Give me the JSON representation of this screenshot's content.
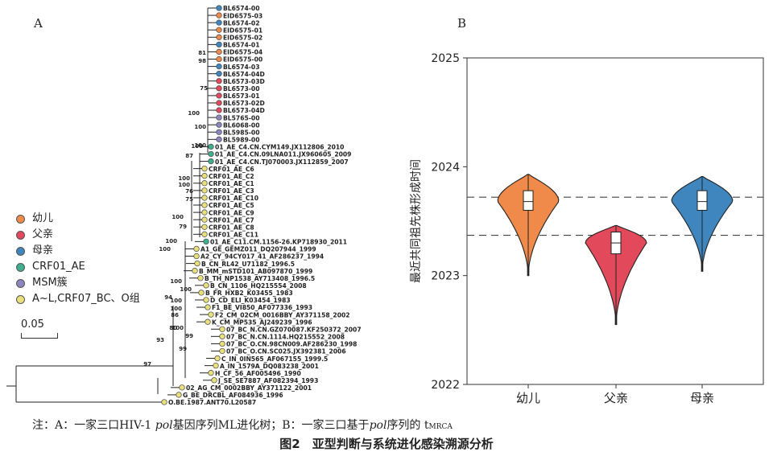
{
  "panel_a": {
    "letter": "A"
  },
  "panel_b": {
    "letter": "B"
  },
  "tree": {
    "leaves": [
      {
        "label": "BL6574-00",
        "group": "mother"
      },
      {
        "label": "EID6575-03",
        "group": "infant"
      },
      {
        "label": "BL6574-02",
        "group": "mother"
      },
      {
        "label": "EID6575-01",
        "group": "infant"
      },
      {
        "label": "EID6575-02",
        "group": "infant"
      },
      {
        "label": "BL6574-01",
        "group": "mother"
      },
      {
        "label": "EID6575-04",
        "group": "infant"
      },
      {
        "label": "EID6575-00",
        "group": "infant"
      },
      {
        "label": "BL6574-03",
        "group": "mother"
      },
      {
        "label": "BL6574-04D",
        "group": "mother"
      },
      {
        "label": "BL6573-03D",
        "group": "father"
      },
      {
        "label": "BL6573-00",
        "group": "father"
      },
      {
        "label": "BL6573-01",
        "group": "father"
      },
      {
        "label": "BL6573-02D",
        "group": "father"
      },
      {
        "label": "BL6573-04D",
        "group": "father"
      },
      {
        "label": "BL5765-00",
        "group": "msm"
      },
      {
        "label": "BL6068-00",
        "group": "msm"
      },
      {
        "label": "BL5985-00",
        "group": "msm"
      },
      {
        "label": "BL5989-00",
        "group": "msm"
      },
      {
        "label": "01_AE_C4.CN.CYM149.JX112806_2010",
        "group": "crf01"
      },
      {
        "label": "01_AE_C4.CN.09LNA011.JX960605_2009",
        "group": "crf01"
      },
      {
        "label": "01_AE_C4.CN.TJ070003.JX112859_2007",
        "group": "crf01"
      },
      {
        "label": "CRF01_AE_C6",
        "group": "none"
      },
      {
        "label": "CRF01_AE_C2",
        "group": "none"
      },
      {
        "label": "CRF01_AE_C1",
        "group": "none"
      },
      {
        "label": "CRF01_AE_C3",
        "group": "none"
      },
      {
        "label": "CRF01_AE_C10",
        "group": "none"
      },
      {
        "label": "CRF01_AE_C5",
        "group": "none"
      },
      {
        "label": "CRF01_AE_C9",
        "group": "none"
      },
      {
        "label": "CRF01_AE_C7",
        "group": "none"
      },
      {
        "label": "CRF01_AE_C8",
        "group": "none"
      },
      {
        "label": "CRF01_AE_C11",
        "group": "none"
      },
      {
        "label": "01_AE_C11.CM.1156-26.KP718930_2011",
        "group": "crf01"
      },
      {
        "label": "A1_GE_GEMZ011_DQ207944_1999",
        "group": "ref"
      },
      {
        "label": "A2_CY_94CY017_41_AF286237_1994",
        "group": "ref"
      },
      {
        "label": "B_CN_RL42_U71182_1996.5",
        "group": "ref"
      },
      {
        "label": "B_MM_mSTD101_AB097870_1999",
        "group": "ref"
      },
      {
        "label": "B_TH_NP1538_AY713408_1996.5",
        "group": "ref"
      },
      {
        "label": "B_CN_1106_HQ215554_2008",
        "group": "ref"
      },
      {
        "label": "B_FR_HXB2_K03455_1983",
        "group": "ref"
      },
      {
        "label": "D_CD_ELI_K03454_1983",
        "group": "ref"
      },
      {
        "label": "F1_BE_VI850_AF077336_1993",
        "group": "ref"
      },
      {
        "label": "F2_CM_02CM_0016BBY_AY371158_2002",
        "group": "ref"
      },
      {
        "label": "K_CM_MP535_AJ249239_1996",
        "group": "ref"
      },
      {
        "label": "07_BC_N.CN.GZ070087.KF250372_2007",
        "group": "ref"
      },
      {
        "label": "07_BC_N.CN.1114.HQ215552_2008",
        "group": "ref"
      },
      {
        "label": "07_BC_O.CN.98CN009.AF286230_1998",
        "group": "ref"
      },
      {
        "label": "07_BC_O.CN.SC025.JX392381_2006",
        "group": "ref"
      },
      {
        "label": "C_IN_0IN565_AF067155_1999.5",
        "group": "ref"
      },
      {
        "label": "A_IN_1579A_DQ083238_2001",
        "group": "ref"
      },
      {
        "label": "H_CF_56_AF005496_1990",
        "group": "ref"
      },
      {
        "label": "J_SE_SE7887_AF082394_1993",
        "group": "ref"
      },
      {
        "label": "02_AG_CM_0002BBY_AY371122_2001",
        "group": "ref"
      },
      {
        "label": "G_BE_DRCBL_AF084936_1996",
        "group": "ref"
      },
      {
        "label": "O.BE.1987.ANT70.L20587",
        "group": "ref"
      }
    ],
    "bootstrap": [
      "81",
      "98",
      "75",
      "100",
      "100",
      "100",
      "100",
      "87",
      "100",
      "100",
      "76",
      "75",
      "100",
      "79",
      "100",
      "100",
      "100",
      "100",
      "100",
      "100",
      "94",
      "99",
      "86",
      "80",
      "100",
      "99",
      "93",
      "97"
    ]
  },
  "legend": {
    "items": [
      {
        "label": "幼儿",
        "color": "#f08a4b"
      },
      {
        "label": "父亲",
        "color": "#e2495b"
      },
      {
        "label": "母亲",
        "color": "#3f86bf"
      },
      {
        "label": "CRF01_AE",
        "color": "#3fb08f"
      },
      {
        "label": "MSM簇",
        "color": "#8b86c0"
      },
      {
        "label": "A~L,CRF07_BC、O组",
        "color": "#e8e07a"
      }
    ]
  },
  "scale_bar": {
    "label": "0.05"
  },
  "chart_data": {
    "type": "violin",
    "ylabel": "最近共同祖先株形成时间",
    "categories": [
      "幼儿",
      "父亲",
      "母亲"
    ],
    "colors": [
      "#f08a4b",
      "#e2495b",
      "#3f86bf"
    ],
    "ylim": [
      2022,
      2025
    ],
    "yticks": [
      "2022",
      "2023",
      "2024",
      "2025"
    ],
    "box": [
      {
        "min": 2023.0,
        "q1": 2023.6,
        "median": 2023.68,
        "q3": 2023.78,
        "max": 2023.93
      },
      {
        "min": 2022.55,
        "q1": 2023.2,
        "median": 2023.3,
        "q3": 2023.4,
        "max": 2023.46
      },
      {
        "min": 2023.04,
        "q1": 2023.6,
        "median": 2023.68,
        "q3": 2023.78,
        "max": 2023.91
      }
    ],
    "reference_lines": [
      2023.72,
      2023.37
    ]
  },
  "note": {
    "prefix": "注：A：一家三口HIV-1 ",
    "pol": "pol",
    "mid": "基因序列ML进化树；B：一家三口基于",
    "pol2": "pol",
    "suffix": "序列的 t",
    "sub": "MRCA"
  },
  "caption": "图2　亚型判断与系统进化感染溯源分析"
}
